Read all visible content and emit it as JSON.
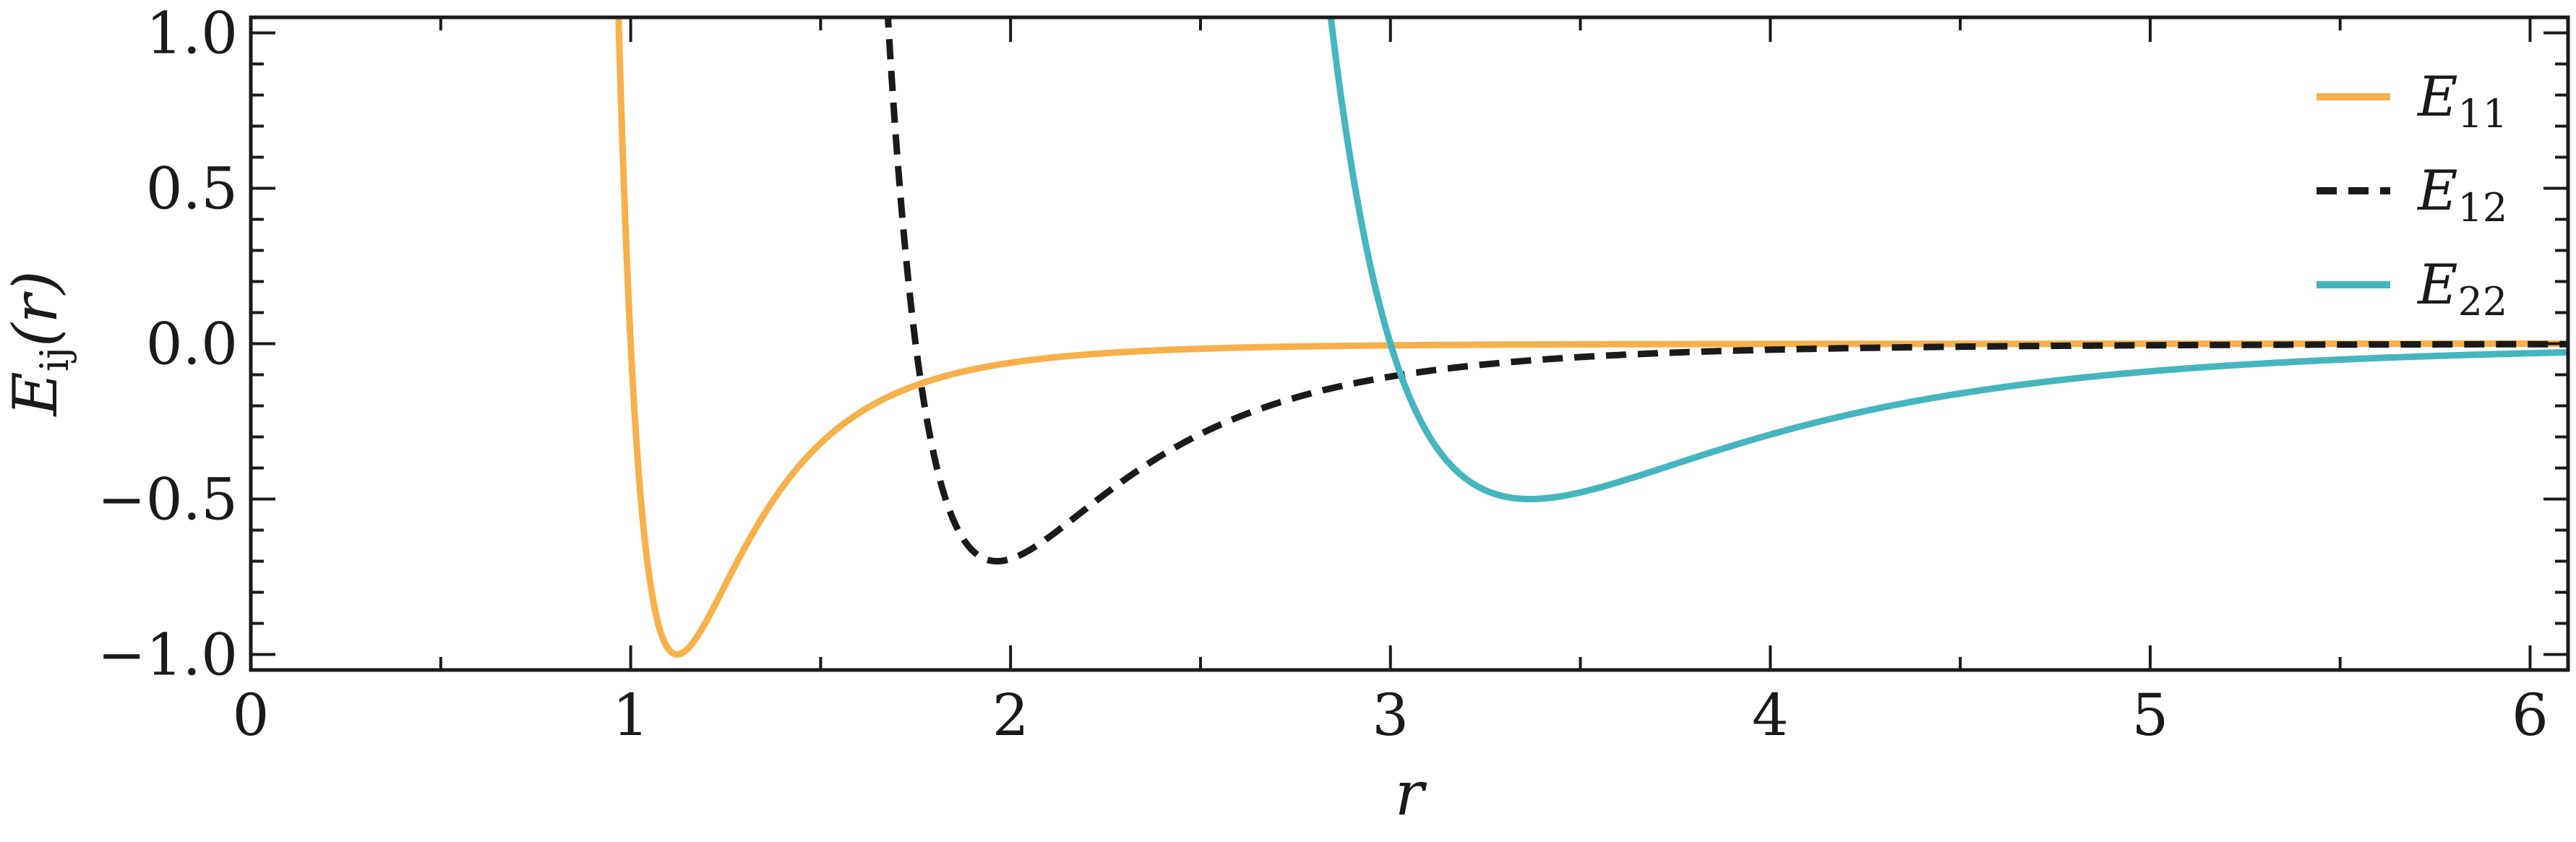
{
  "chart_data": {
    "type": "line",
    "xlabel": "r",
    "ylabel": {
      "base": "E",
      "sub": "ij",
      "suffix": "(r)"
    },
    "xlim": [
      0,
      6.1
    ],
    "ylim": [
      -1.05,
      1.05
    ],
    "xticks": [
      0,
      1,
      2,
      3,
      4,
      5,
      6
    ],
    "yticks": [
      -1.0,
      -0.5,
      0.0,
      0.5,
      1.0
    ],
    "xtick_labels": [
      "0",
      "1",
      "2",
      "3",
      "4",
      "5",
      "6"
    ],
    "ytick_labels": [
      "−1.0",
      "−0.5",
      "0.0",
      "0.5",
      "1.0"
    ],
    "grid": false,
    "legend_position": "top-right",
    "series": [
      {
        "name": "E11",
        "label_base": "E",
        "label_sub": "11",
        "color": "#f8b04b",
        "dash": "solid",
        "epsilon": 1.0,
        "sigma": 1.0
      },
      {
        "name": "E12",
        "label_base": "E",
        "label_sub": "12",
        "color": "#1a1a1a",
        "dash": "dashed",
        "epsilon": 0.7,
        "sigma": 1.75
      },
      {
        "name": "E22",
        "label_base": "E",
        "label_sub": "22",
        "color": "#45b5c0",
        "dash": "solid",
        "epsilon": 0.5,
        "sigma": 3.0
      }
    ]
  }
}
